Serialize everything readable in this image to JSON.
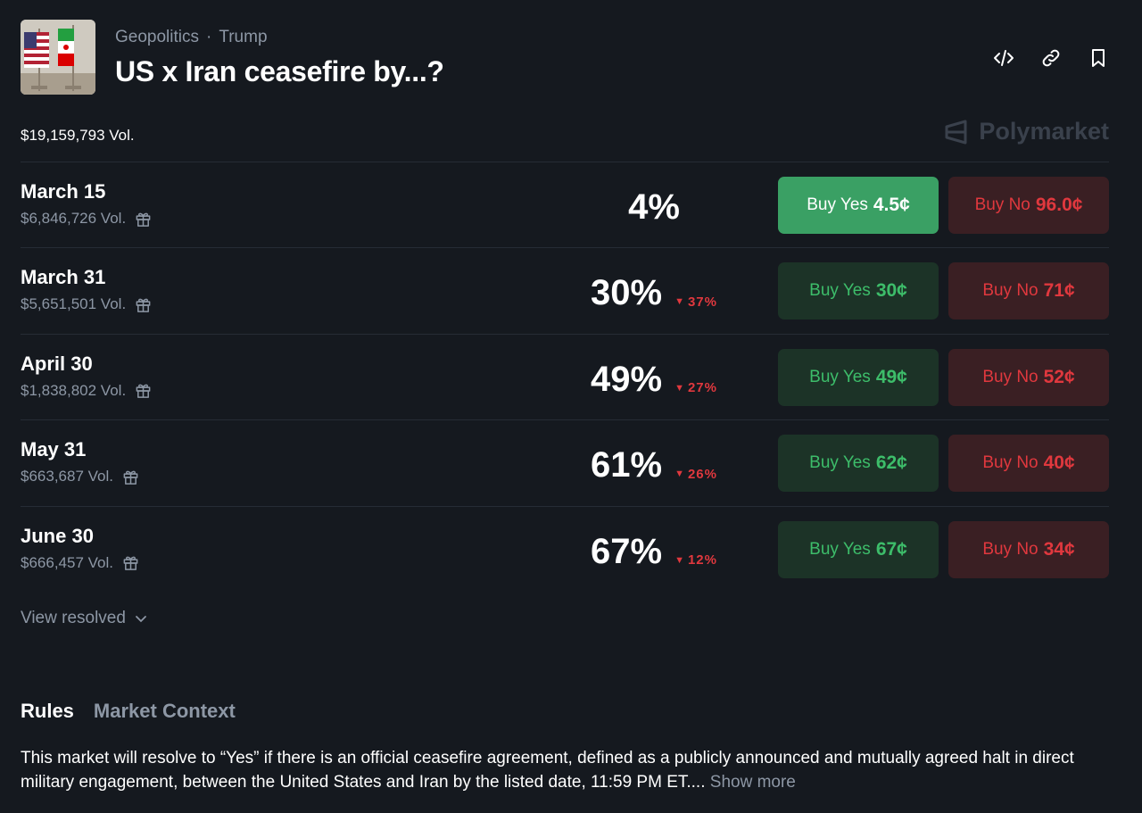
{
  "header": {
    "category": "Geopolitics",
    "separator": "·",
    "subcategory": "Trump",
    "title": "US x Iran ceasefire by...?"
  },
  "volume": "$19,159,793 Vol.",
  "brand": "Polymarket",
  "colors": {
    "background": "#15191f",
    "yes_accent": "#3dbd6a",
    "no_accent": "#e0383e",
    "muted": "#8d97a5"
  },
  "outcomes": [
    {
      "label": "March 15",
      "volume": "$6,846,726 Vol.",
      "percent": "4%",
      "change": "",
      "yes_label": "Buy Yes",
      "yes_price": "4.5¢",
      "no_label": "Buy No",
      "no_price": "96.0¢"
    },
    {
      "label": "March 31",
      "volume": "$5,651,501 Vol.",
      "percent": "30%",
      "change": "37%",
      "yes_label": "Buy Yes",
      "yes_price": "30¢",
      "no_label": "Buy No",
      "no_price": "71¢"
    },
    {
      "label": "April 30",
      "volume": "$1,838,802 Vol.",
      "percent": "49%",
      "change": "27%",
      "yes_label": "Buy Yes",
      "yes_price": "49¢",
      "no_label": "Buy No",
      "no_price": "52¢"
    },
    {
      "label": "May 31",
      "volume": "$663,687 Vol.",
      "percent": "61%",
      "change": "26%",
      "yes_label": "Buy Yes",
      "yes_price": "62¢",
      "no_label": "Buy No",
      "no_price": "40¢"
    },
    {
      "label": "June 30",
      "volume": "$666,457 Vol.",
      "percent": "67%",
      "change": "12%",
      "yes_label": "Buy Yes",
      "yes_price": "67¢",
      "no_label": "Buy No",
      "no_price": "34¢"
    }
  ],
  "view_resolved": "View resolved",
  "tabs": {
    "rules": "Rules",
    "context": "Market Context"
  },
  "rules_text": "This market will resolve to “Yes” if there is an official ceasefire agreement, defined as a publicly announced and mutually agreed halt in direct military engagement, between the United States and Iran by the listed date, 11:59 PM ET....",
  "show_more": "Show more"
}
